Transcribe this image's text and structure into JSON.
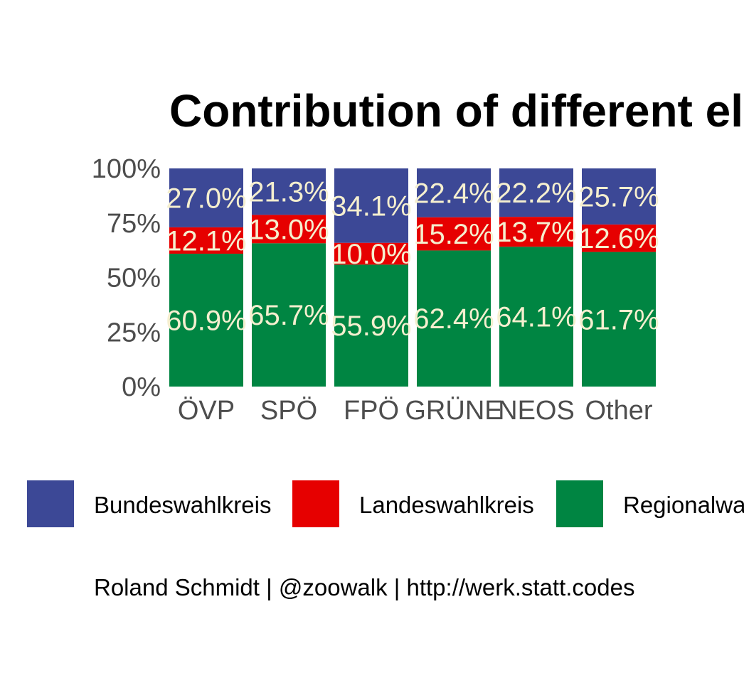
{
  "chart_data": {
    "type": "bar",
    "stacked": true,
    "title": "Contribution of different ele",
    "categories": [
      "ÖVP",
      "SPÖ",
      "FPÖ",
      "GRÜNE",
      "NEOS",
      "Other"
    ],
    "ylim": [
      0,
      100
    ],
    "yticks": [
      "0%",
      "25%",
      "50%",
      "75%",
      "100%"
    ],
    "series": [
      {
        "name": "Regionalwa",
        "color": "#008542",
        "values": [
          60.9,
          65.7,
          55.9,
          62.4,
          64.1,
          61.7
        ],
        "labels": [
          "60.9%",
          "65.7%",
          "55.9%",
          "62.4%",
          "64.1%",
          "61.7%"
        ]
      },
      {
        "name": "Landeswahlkreis",
        "color": "#e60000",
        "values": [
          12.1,
          13.0,
          10.0,
          15.2,
          13.7,
          12.6
        ],
        "labels": [
          "12.1%",
          "13.0%",
          "10.0%",
          "15.2%",
          "13.7%",
          "12.6%"
        ]
      },
      {
        "name": "Bundeswahlkreis",
        "color": "#3c4896",
        "values": [
          27.0,
          21.3,
          34.1,
          22.4,
          22.2,
          25.7
        ],
        "labels": [
          "27.0%",
          "21.3%",
          "34.1%",
          "22.4%",
          "22.2%",
          "25.7%"
        ]
      }
    ],
    "legend": {
      "position": "bottom",
      "order": [
        "Bundeswahlkreis",
        "Landeswahlkreis",
        "Regionalwa"
      ]
    },
    "grid": false
  },
  "caption": "Roland Schmidt | @zoowalk | http://werk.statt.codes"
}
